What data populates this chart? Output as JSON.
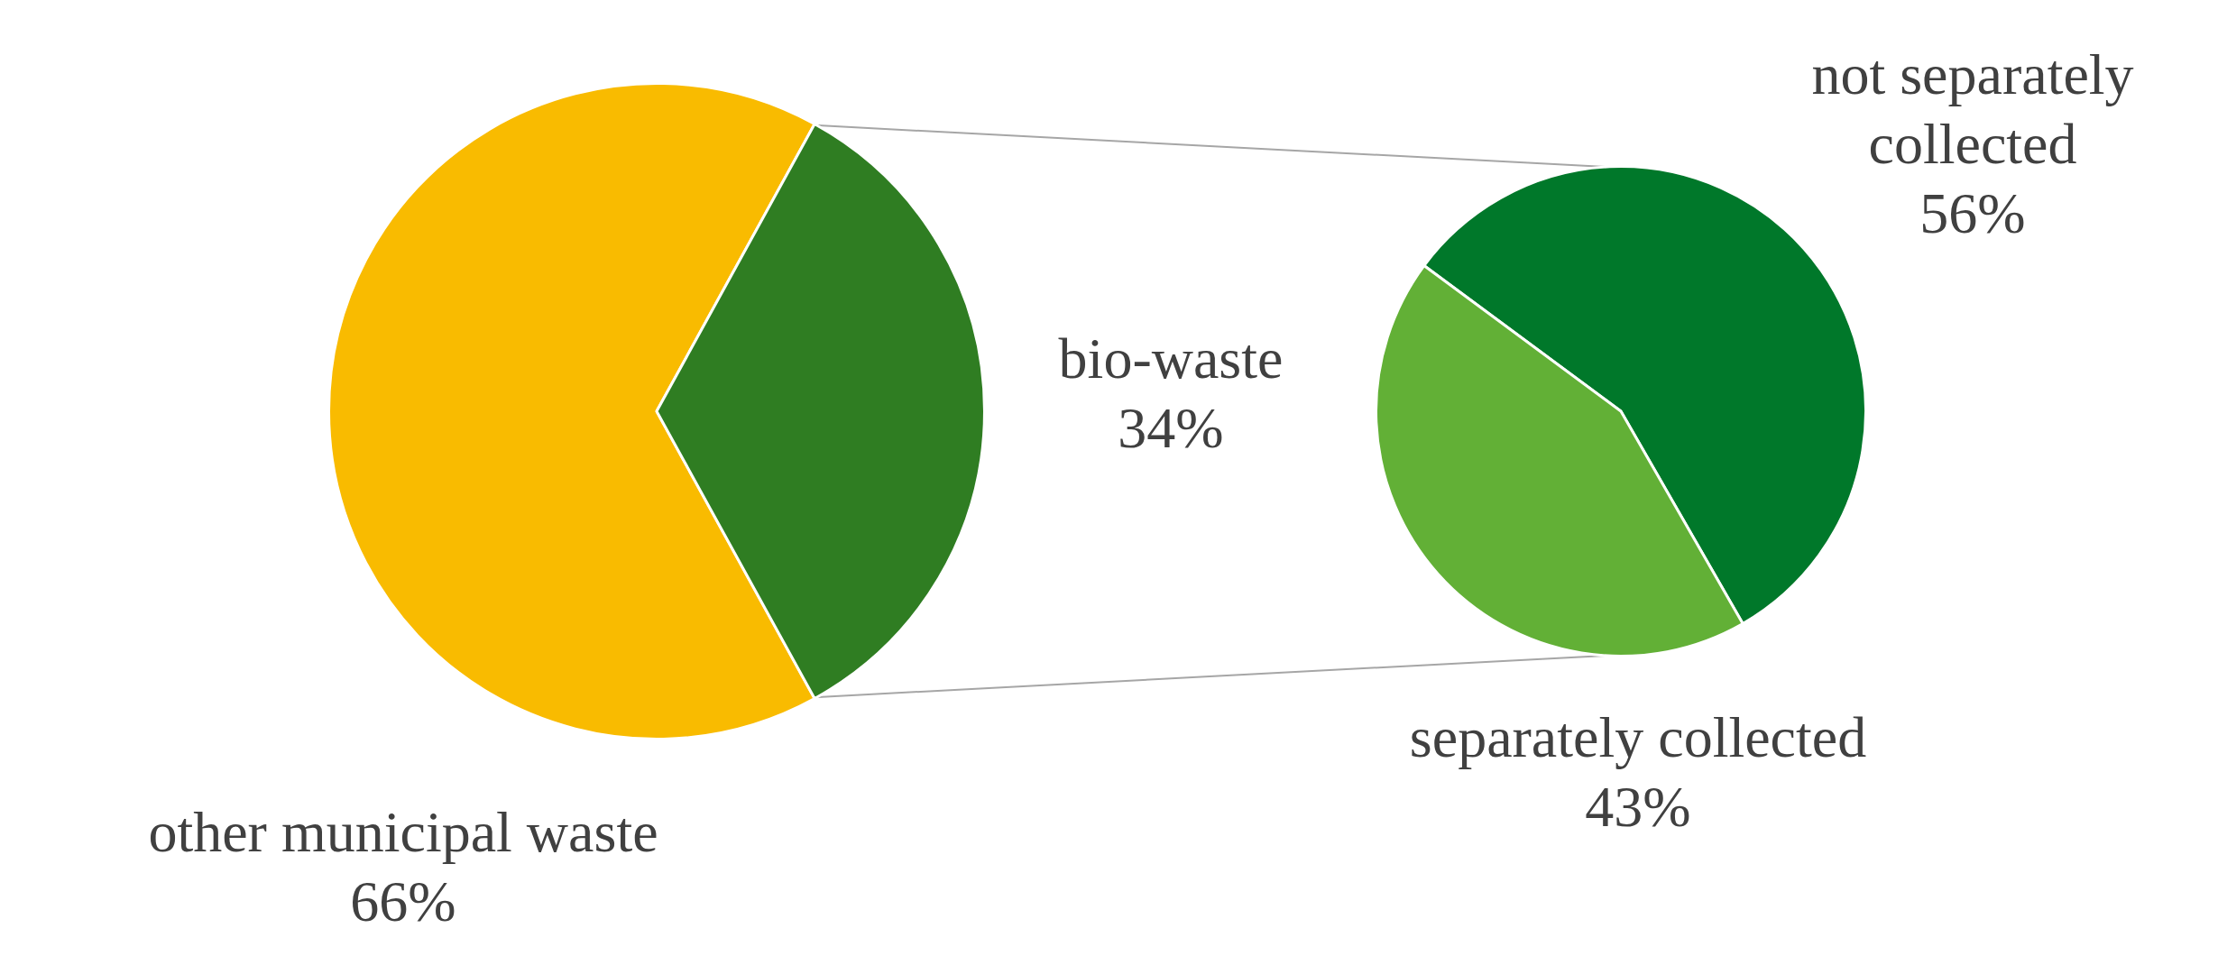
{
  "chart_data": [
    {
      "type": "pie",
      "categories": [
        "other municipal waste",
        "bio-waste"
      ],
      "values": [
        66,
        34
      ],
      "colors": [
        "#f9bb00",
        "#2f7d22"
      ],
      "value_labels": [
        "66%",
        "34%"
      ]
    },
    {
      "type": "pie",
      "categories": [
        "not separately collected",
        "separately collected"
      ],
      "values": [
        56,
        43
      ],
      "colors": [
        "#00782a",
        "#62b036"
      ],
      "value_labels": [
        "56%",
        "43%"
      ]
    }
  ]
}
